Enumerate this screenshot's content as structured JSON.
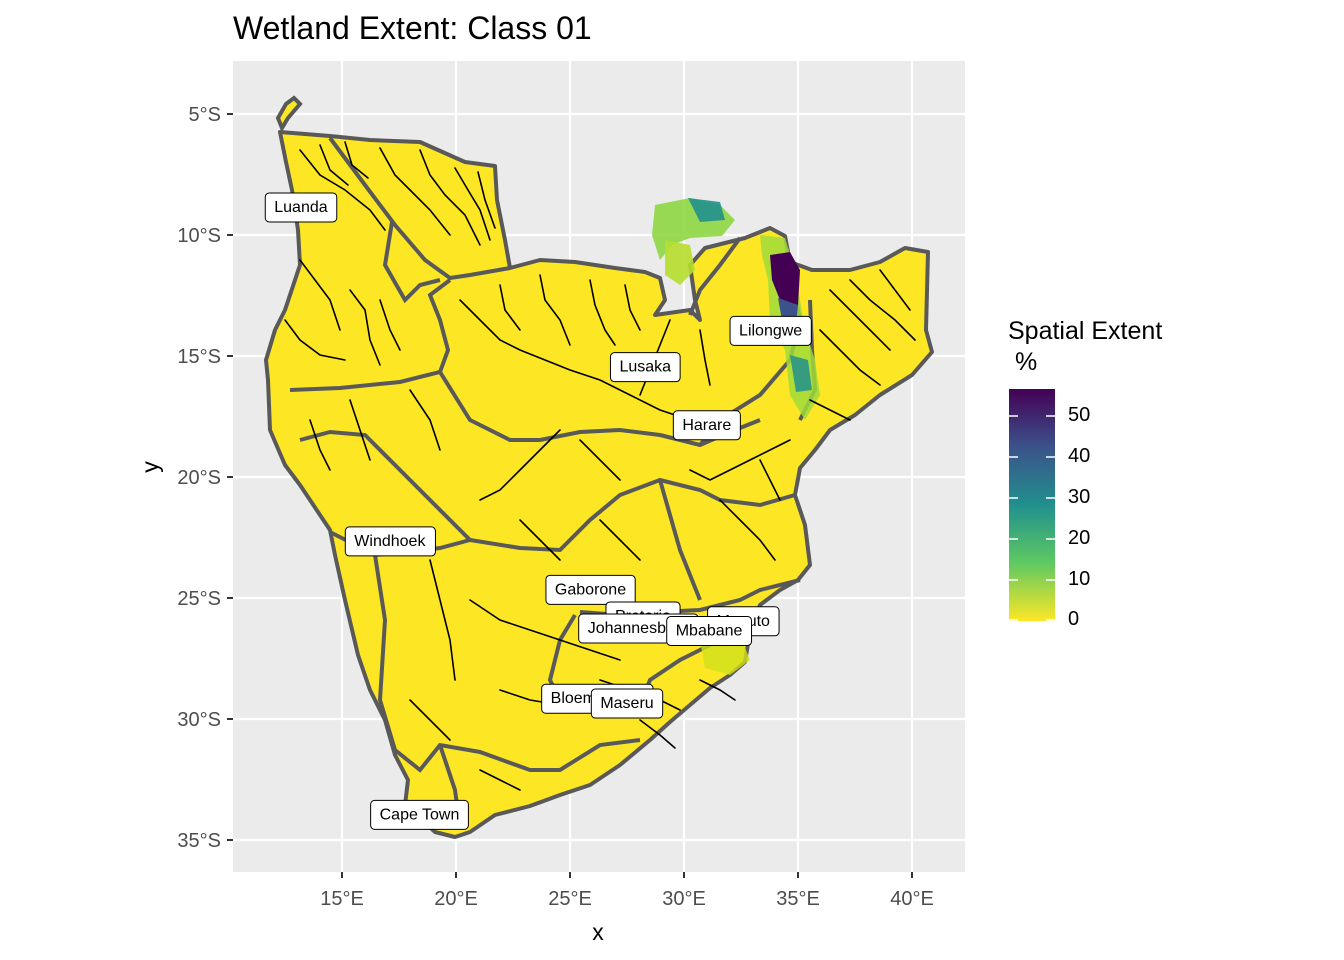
{
  "title": "Wetland Extent: Class 01",
  "axes": {
    "x_title": "x",
    "y_title": "y",
    "x_ticks": [
      "15°E",
      "20°E",
      "25°E",
      "30°E",
      "35°E",
      "40°E"
    ],
    "y_ticks": [
      "5°S",
      "10°S",
      "15°S",
      "20°S",
      "25°S",
      "30°S",
      "35°S"
    ]
  },
  "legend": {
    "title": "Spatial Extent\n %",
    "ticks": [
      "50",
      "40",
      "30",
      "20",
      "10",
      "0"
    ],
    "colors": [
      "#440154",
      "#3b528b",
      "#21908d",
      "#5ec962",
      "#fde725"
    ],
    "range": [
      0,
      57
    ]
  },
  "cities": [
    {
      "name": "Luanda",
      "lon": 13.2,
      "lat": -8.8
    },
    {
      "name": "Lusaka",
      "lon": 28.3,
      "lat": -15.4
    },
    {
      "name": "Lilongwe",
      "lon": 33.8,
      "lat": -13.9
    },
    {
      "name": "Harare",
      "lon": 31.0,
      "lat": -17.8
    },
    {
      "name": "Windhoek",
      "lon": 17.1,
      "lat": -22.6
    },
    {
      "name": "Gaborone",
      "lon": 25.9,
      "lat": -24.6
    },
    {
      "name": "Pretoria",
      "lon": 28.2,
      "lat": -25.7
    },
    {
      "name": "Johannesburg",
      "lon": 28.0,
      "lat": -26.2
    },
    {
      "name": "Maputo",
      "lon": 32.6,
      "lat": -25.9
    },
    {
      "name": "Mbabane",
      "lon": 31.1,
      "lat": -26.3
    },
    {
      "name": "Bloemfontein",
      "lon": 26.2,
      "lat": -29.1
    },
    {
      "name": "Maseru",
      "lon": 27.5,
      "lat": -29.3
    },
    {
      "name": "Cape Town",
      "lon": 18.4,
      "lat": -33.9
    }
  ],
  "colors": {
    "panel_background": "#ebebeb",
    "grid": "#ffffff",
    "land_fill": "#fde725",
    "basin_border": "#595959",
    "river": "#000000"
  }
}
